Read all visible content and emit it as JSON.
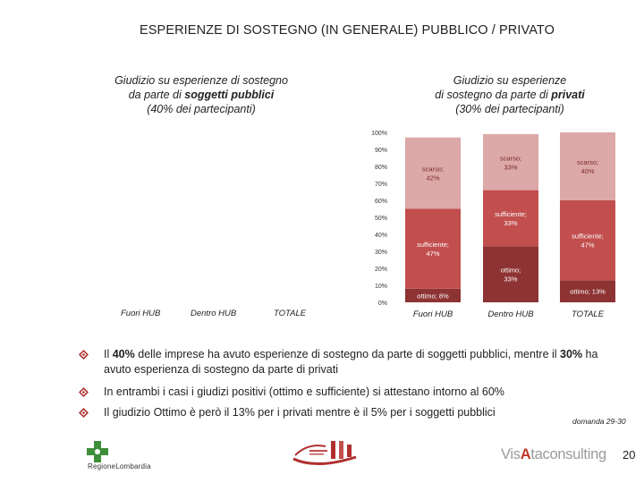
{
  "title": "ESPERIENZE DI SOSTEGNO (IN GENERALE) PUBBLICO / PRIVATO",
  "left_panel": {
    "line1": "Giudizio su esperienze di sostegno",
    "line2_pre": "da parte di ",
    "line2_bold": "soggetti pubblici",
    "line3": "(40% dei partecipanti)",
    "categories": [
      "Fuori HUB",
      "Dentro HUB",
      "TOTALE"
    ]
  },
  "right_panel": {
    "line1": "Giudizio su esperienze",
    "line2_pre": "di sostegno da parte di ",
    "line2_bold": "privati",
    "line3": "(30% dei partecipanti)"
  },
  "chart_data": {
    "type": "bar",
    "stacked": true,
    "categories": [
      "Fuori HUB",
      "Dentro HUB",
      "TOTALE"
    ],
    "yticks": [
      "0%",
      "10%",
      "20%",
      "30%",
      "40%",
      "50%",
      "60%",
      "70%",
      "80%",
      "90%",
      "100%"
    ],
    "ylim": [
      0,
      100
    ],
    "series": [
      {
        "key": "ottimo",
        "color": "#8e3333",
        "values": [
          8,
          33,
          13
        ],
        "labels": [
          "ottimo; 8%",
          "ottimo;\n33%",
          "ottimo; 13%"
        ]
      },
      {
        "key": "sufficiente",
        "color": "#c24e4e",
        "values": [
          47,
          33,
          47
        ],
        "labels": [
          "sufficiente;\n47%",
          "sufficiente;\n33%",
          "sufficiente;\n47%"
        ]
      },
      {
        "key": "scarso",
        "color": "#dda8a8",
        "values": [
          42,
          33,
          40
        ],
        "labels": [
          "scarso;\n42%",
          "scarso;\n33%",
          "scarso;\n40%"
        ]
      }
    ]
  },
  "bullets": [
    {
      "parts": [
        [
          "Il ",
          false
        ],
        [
          "40%",
          true
        ],
        [
          " delle imprese ha avuto esperienze di sostegno da parte di soggetti pubblici, mentre il ",
          false
        ],
        [
          "30%",
          true
        ],
        [
          " ha avuto esperienza di sostegno da parte di privati",
          false
        ]
      ]
    },
    {
      "parts": [
        [
          "In entrambi i casi i giudizi positivi (ottimo e sufficiente) si attestano intorno al 60%",
          false
        ]
      ]
    },
    {
      "parts": [
        [
          "Il giudizio Ottimo è però il 13% per i privati mentre è il 5% per i soggetti pubblici",
          false
        ]
      ]
    }
  ],
  "footnote": "domanda 29-30",
  "page_number": "20",
  "logos": {
    "regione": "RegioneLombardia",
    "visnova_a": "Vis",
    "visnova_b": "A",
    "visnova_c": "ta",
    "visnova_d": "consulting"
  },
  "colors": {
    "bullet": "#b03030"
  }
}
